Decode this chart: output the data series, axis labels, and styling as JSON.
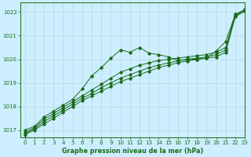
{
  "title": "Graphe pression niveau de la mer (hPa)",
  "bg_color": "#cceeff",
  "line_color": "#1a6b1a",
  "xlim": [
    -0.5,
    23
  ],
  "ylim": [
    1016.7,
    1022.4
  ],
  "yticks": [
    1017,
    1018,
    1019,
    1020,
    1021,
    1022
  ],
  "xticks": [
    0,
    1,
    2,
    3,
    4,
    5,
    6,
    7,
    8,
    9,
    10,
    11,
    12,
    13,
    14,
    15,
    16,
    17,
    18,
    19,
    20,
    21,
    22,
    23
  ],
  "series1_wavy": [
    1017.0,
    1017.15,
    1017.55,
    1017.8,
    1018.05,
    1018.3,
    1018.75,
    1019.3,
    1019.65,
    1020.05,
    1020.4,
    1020.3,
    1020.5,
    1020.25,
    1020.2,
    1020.1,
    1019.95,
    1020.0,
    1020.0,
    1020.05,
    1020.35,
    1020.75,
    1021.9,
    1022.1
  ],
  "series2_linear": [
    1016.9,
    1017.1,
    1017.45,
    1017.7,
    1017.95,
    1018.2,
    1018.45,
    1018.7,
    1018.95,
    1019.2,
    1019.45,
    1019.6,
    1019.75,
    1019.85,
    1019.95,
    1020.0,
    1020.05,
    1020.1,
    1020.15,
    1020.2,
    1020.3,
    1020.5,
    1021.9,
    1022.1
  ],
  "series3_linear": [
    1016.85,
    1017.05,
    1017.35,
    1017.6,
    1017.85,
    1018.1,
    1018.35,
    1018.55,
    1018.8,
    1019.0,
    1019.2,
    1019.35,
    1019.5,
    1019.65,
    1019.75,
    1019.85,
    1019.93,
    1020.0,
    1020.05,
    1020.1,
    1020.2,
    1020.4,
    1021.85,
    1022.05
  ],
  "series4_linear": [
    1016.8,
    1017.0,
    1017.25,
    1017.5,
    1017.75,
    1018.0,
    1018.25,
    1018.45,
    1018.65,
    1018.85,
    1019.05,
    1019.2,
    1019.35,
    1019.5,
    1019.65,
    1019.75,
    1019.85,
    1019.93,
    1020.0,
    1020.05,
    1020.1,
    1020.3,
    1021.8,
    1022.05
  ]
}
